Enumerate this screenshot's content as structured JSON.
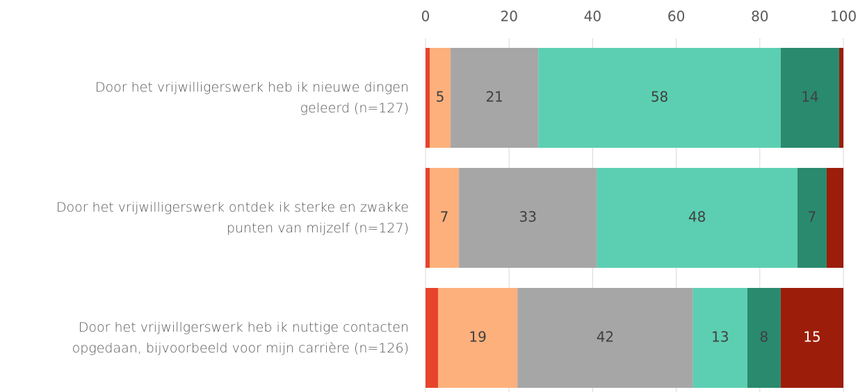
{
  "chart_data": {
    "type": "stacked-bar-horizontal",
    "categories": [
      "Door het vrijwilligerswerk heb ik nieuwe dingen\ngeleerd (n=127)",
      "Door het vrijwilligerswerk ontdek ik sterke en zwakke\npunten van mijzelf (n=127)",
      "Door het vrijwillgerswerk heb ik nuttige contacten\nopgedaan, bijvoorbeeld voor mijn carrière (n=126)"
    ],
    "series": [
      {
        "color": "#e8442c",
        "values": [
          1,
          1,
          3
        ]
      },
      {
        "color": "#fdb07c",
        "values": [
          5,
          7,
          19
        ]
      },
      {
        "color": "#a6a6a6",
        "values": [
          21,
          33,
          42
        ]
      },
      {
        "color": "#5ccfb2",
        "values": [
          58,
          48,
          13
        ]
      },
      {
        "color": "#2a8a6e",
        "values": [
          14,
          7,
          8
        ]
      },
      {
        "color": "#9c1e0a",
        "values": [
          1,
          4,
          15
        ]
      }
    ],
    "xlim": [
      0,
      100
    ],
    "xticks": [
      0,
      20,
      40,
      60,
      80,
      100
    ],
    "grid": true
  }
}
